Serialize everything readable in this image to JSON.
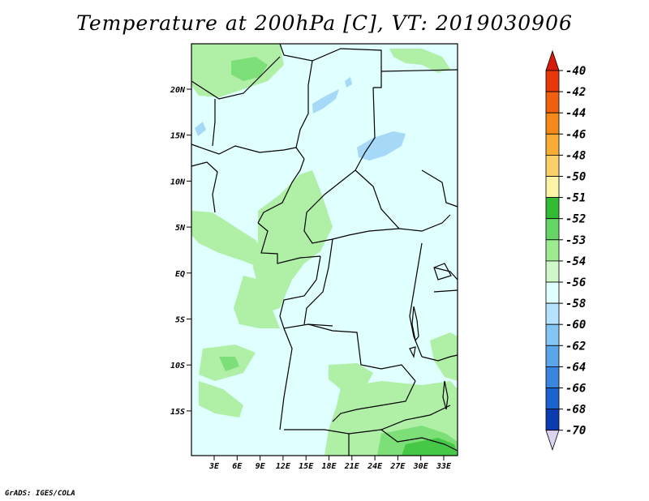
{
  "title": "Temperature at 200hPa [C], VT: 2019030906",
  "credit": "GrADS: IGES/COLA",
  "map": {
    "region": "Central Africa",
    "lat_labels": [
      "20N",
      "15N",
      "10N",
      "5N",
      "EQ",
      "5S",
      "10S",
      "15S"
    ],
    "lon_labels": [
      "3E",
      "6E",
      "9E",
      "12E",
      "15E",
      "18E",
      "21E",
      "24E",
      "27E",
      "30E",
      "33E"
    ]
  },
  "colorbar": {
    "labels": [
      "-40",
      "-42",
      "-44",
      "-46",
      "-48",
      "-50",
      "-51",
      "-52",
      "-53",
      "-54",
      "-56",
      "-58",
      "-60",
      "-62",
      "-64",
      "-66",
      "-68",
      "-70"
    ],
    "colors": [
      "#e8380a",
      "#f06010",
      "#f58a1a",
      "#f8ac33",
      "#fbd06b",
      "#fdf5a5",
      "#33bb33",
      "#66d566",
      "#9eec90",
      "#cff8c8",
      "#e0ffff",
      "#b4e2ff",
      "#82c6f5",
      "#5aa6ea",
      "#3a86df",
      "#1a62cd",
      "#0a3cb0",
      "#072a8a",
      "#061870"
    ],
    "top_arrow_color": "#d81a0a",
    "bottom_arrow_color": "#dcd4f0"
  },
  "fill_colors": {
    "background": "#e0ffff",
    "warm_light": "#aff0a6",
    "warm_mid": "#7ddf78",
    "warm_dark": "#45c845",
    "cold": "#a6d8f7"
  }
}
